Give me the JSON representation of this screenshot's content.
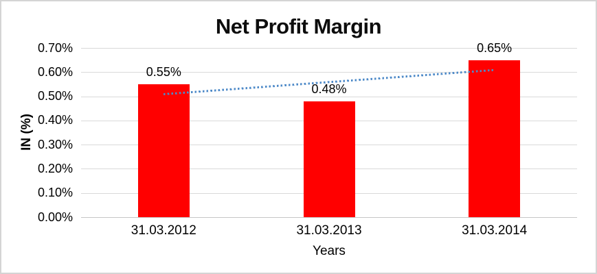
{
  "chart_data": {
    "type": "bar",
    "title": "Net Profit Margin",
    "xlabel": "Years",
    "ylabel": "IN (%)",
    "categories": [
      "31.03.2012",
      "31.03.2013",
      "31.03.2014"
    ],
    "values": [
      0.55,
      0.48,
      0.65
    ],
    "value_unit": "%",
    "data_labels": [
      "0.55%",
      "0.48%",
      "0.65%"
    ],
    "ylim": [
      0,
      0.7
    ],
    "ytick_step": 0.1,
    "ytick_labels": [
      "0.00%",
      "0.10%",
      "0.20%",
      "0.30%",
      "0.40%",
      "0.50%",
      "0.60%",
      "0.70%"
    ],
    "grid": true,
    "legend": "none",
    "bar_color": "#ff0000",
    "gridline_color": "#d9d9d9",
    "axis_line_color": "#c6c6c6",
    "text_color": "#000000",
    "chart_border_color": "#d4d4d4",
    "trendline": {
      "type": "linear",
      "style": "dotted",
      "color": "#4e8ac8"
    }
  }
}
